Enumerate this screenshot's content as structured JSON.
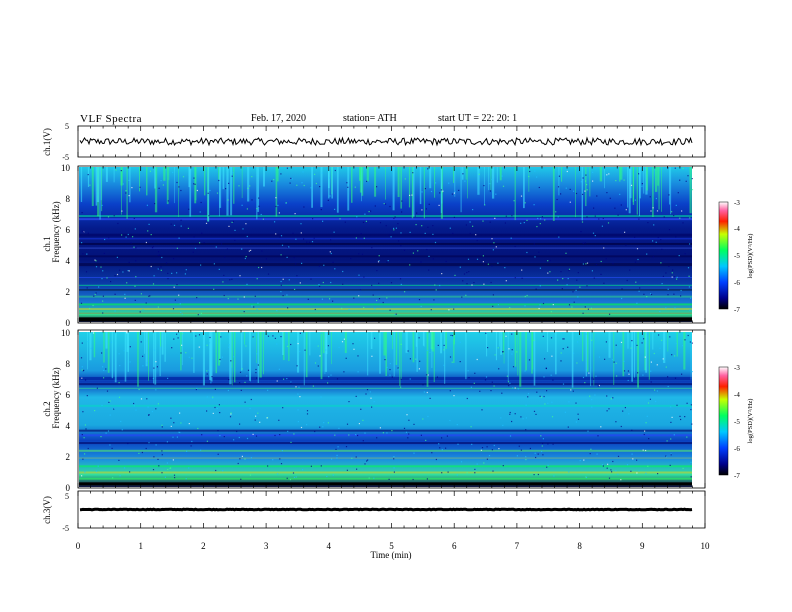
{
  "header": {
    "title": "VLF  Spectra",
    "date": "Feb. 17, 2020",
    "station": "station= ATH",
    "start": "start  UT  =   22: 20: 1"
  },
  "chart_data": [
    {
      "type": "line",
      "panel": "ch1-waveform",
      "ylabel": "ch.1(V)",
      "ylim": [
        -5,
        5
      ],
      "yticks": [
        "5",
        "-5"
      ],
      "xlim": [
        0,
        10
      ],
      "description_values": {
        "mean_v": 0,
        "amplitude_v": 1.2
      }
    },
    {
      "type": "heatmap",
      "panel": "ch1-spectrogram",
      "ylabel_line1": "ch.1",
      "ylabel_line2": "Frequency  (kHz)",
      "ylim": [
        0,
        10
      ],
      "yticks": [
        "10",
        "8",
        "6",
        "4",
        "2",
        "0"
      ],
      "xlim": [
        0,
        9.8
      ],
      "colorbar": {
        "label": "log(PSD)(V²/Hz)",
        "range": [
          -7,
          -3
        ],
        "ticks": [
          "-3",
          "-4",
          "-5",
          "-6",
          "-7"
        ]
      }
    },
    {
      "type": "heatmap",
      "panel": "ch2-spectrogram",
      "ylabel_line1": "ch.2",
      "ylabel_line2": "Frequency  (kHz)",
      "ylim": [
        0,
        10
      ],
      "yticks": [
        "10",
        "8",
        "6",
        "4",
        "2",
        "0"
      ],
      "xlim": [
        0,
        9.8
      ],
      "colorbar": {
        "label": "log(PSD)(V²/Hz)",
        "range": [
          -7,
          -3
        ],
        "ticks": [
          "-3",
          "-4",
          "-5",
          "-6",
          "-7"
        ]
      }
    },
    {
      "type": "line",
      "panel": "ch3-waveform",
      "ylabel": "ch.3(V)",
      "ylim": [
        -5,
        5
      ],
      "yticks": [
        "5",
        "-5"
      ],
      "xlim": [
        0,
        10
      ],
      "description_values": {
        "mean_v": 0,
        "amplitude_v": 0.3
      }
    }
  ],
  "xaxis": {
    "label": "Time  (min)",
    "ticks": [
      "0",
      "1",
      "2",
      "3",
      "4",
      "5",
      "6",
      "7",
      "8",
      "9",
      "10"
    ],
    "range": [
      0,
      10
    ]
  }
}
